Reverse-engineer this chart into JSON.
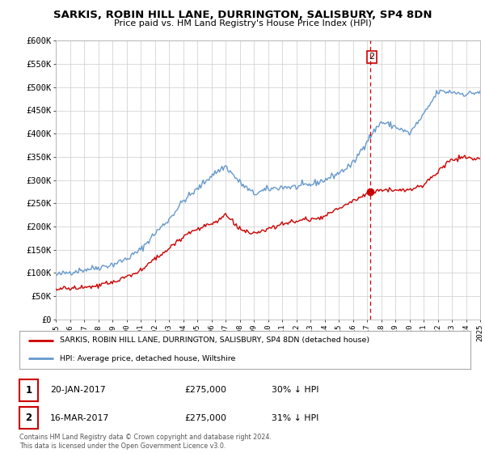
{
  "title": "SARKIS, ROBIN HILL LANE, DURRINGTON, SALISBURY, SP4 8DN",
  "subtitle": "Price paid vs. HM Land Registry's House Price Index (HPI)",
  "legend_label_red": "SARKIS, ROBIN HILL LANE, DURRINGTON, SALISBURY, SP4 8DN (detached house)",
  "legend_label_blue": "HPI: Average price, detached house, Wiltshire",
  "transaction1_num": "1",
  "transaction1_date": "20-JAN-2017",
  "transaction1_price": "£275,000",
  "transaction1_hpi": "30% ↓ HPI",
  "transaction2_num": "2",
  "transaction2_date": "16-MAR-2017",
  "transaction2_price": "£275,000",
  "transaction2_hpi": "31% ↓ HPI",
  "copyright": "Contains HM Land Registry data © Crown copyright and database right 2024.\nThis data is licensed under the Open Government Licence v3.0.",
  "xmin": 1995,
  "xmax": 2025,
  "ymin": 0,
  "ymax": 600000,
  "yticks": [
    0,
    50000,
    100000,
    150000,
    200000,
    250000,
    300000,
    350000,
    400000,
    450000,
    500000,
    550000,
    600000
  ],
  "ytick_labels": [
    "£0",
    "£50K",
    "£100K",
    "£150K",
    "£200K",
    "£250K",
    "£300K",
    "£350K",
    "£400K",
    "£450K",
    "£500K",
    "£550K",
    "£600K"
  ],
  "marker2_x": 2017.2,
  "marker2_y": 275000,
  "vline_x": 2017.2,
  "color_red": "#cc0000",
  "color_blue": "#6699cc",
  "color_vline": "#cc0000",
  "color_grid": "#cccccc",
  "color_bg": "#ffffff",
  "marker2_label": "2",
  "hpi_anchors_x": [
    1995,
    1996,
    1997,
    1998,
    1999,
    2000,
    2001,
    2002,
    2003,
    2004,
    2005,
    2006,
    2007,
    2008,
    2009,
    2010,
    2011,
    2012,
    2013,
    2014,
    2015,
    2016,
    2017,
    2018,
    2019,
    2020,
    2021,
    2022,
    2023,
    2024,
    2025
  ],
  "hpi_anchors_y": [
    95000,
    102000,
    107000,
    112000,
    118000,
    130000,
    150000,
    185000,
    215000,
    255000,
    280000,
    310000,
    330000,
    295000,
    270000,
    280000,
    285000,
    285000,
    290000,
    300000,
    315000,
    335000,
    385000,
    425000,
    415000,
    400000,
    440000,
    490000,
    490000,
    485000,
    490000
  ],
  "red_anchors_x": [
    1995,
    1996,
    1997,
    1998,
    1999,
    2000,
    2001,
    2002,
    2003,
    2004,
    2005,
    2006,
    2007,
    2008,
    2009,
    2010,
    2011,
    2012,
    2013,
    2014,
    2015,
    2016,
    2017.2,
    2018,
    2019,
    2020,
    2021,
    2022,
    2023,
    2024,
    2025
  ],
  "red_anchors_y": [
    65000,
    67000,
    68000,
    72000,
    80000,
    92000,
    105000,
    130000,
    152000,
    180000,
    195000,
    205000,
    225000,
    195000,
    182000,
    195000,
    205000,
    212000,
    215000,
    222000,
    238000,
    255000,
    275000,
    278000,
    280000,
    278000,
    290000,
    318000,
    345000,
    348000,
    345000
  ],
  "noise_seed": 42,
  "noise_hpi": 3500,
  "noise_red": 2500
}
